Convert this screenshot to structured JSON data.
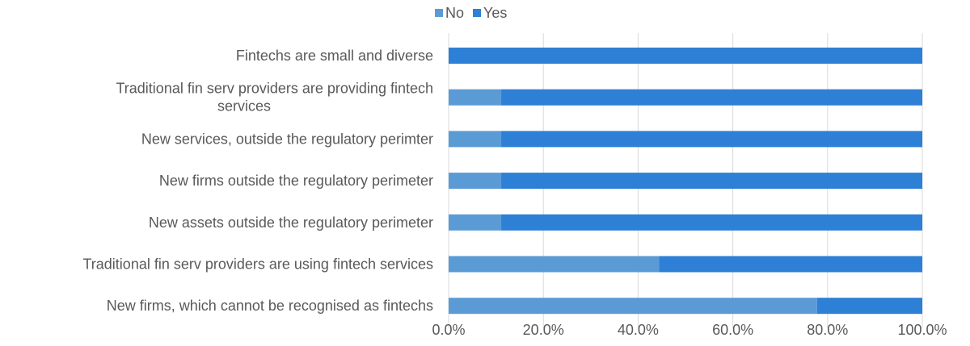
{
  "chart_data": {
    "type": "bar",
    "orientation": "horizontal",
    "stacked": true,
    "categories": [
      "Fintechs are small and diverse",
      "Traditional fin serv providers are providing fintech services",
      "New services, outside the regulatory perimter",
      "New firms outside the regulatory perimeter",
      "New assets outside the regulatory perimeter",
      "Traditional fin serv providers are using fintech services",
      "New firms, which cannot be recognised as fintechs"
    ],
    "category_lines": [
      [
        "Fintechs are small and diverse"
      ],
      [
        "Traditional fin serv providers are providing fintech",
        "services"
      ],
      [
        "New services, outside the regulatory perimter"
      ],
      [
        "New firms outside the regulatory perimeter"
      ],
      [
        "New assets outside the regulatory perimeter"
      ],
      [
        "Traditional fin serv providers are using fintech services"
      ],
      [
        "New firms, which cannot be recognised as fintechs"
      ]
    ],
    "series": [
      {
        "name": "No",
        "color": "#5b9bd5",
        "values": [
          0.0,
          11.1,
          11.1,
          11.1,
          11.1,
          44.4,
          77.8
        ]
      },
      {
        "name": "Yes",
        "color": "#2e7fd6",
        "values": [
          100.0,
          88.9,
          88.9,
          88.9,
          88.9,
          55.6,
          22.2
        ]
      }
    ],
    "xlim": [
      0,
      100
    ],
    "x_ticks": [
      "0.0%",
      "20.0%",
      "40.0%",
      "60.0%",
      "80.0%",
      "100.0%"
    ],
    "grid": "vertical",
    "legend_position": "top",
    "title": "",
    "xlabel": "",
    "ylabel": ""
  }
}
